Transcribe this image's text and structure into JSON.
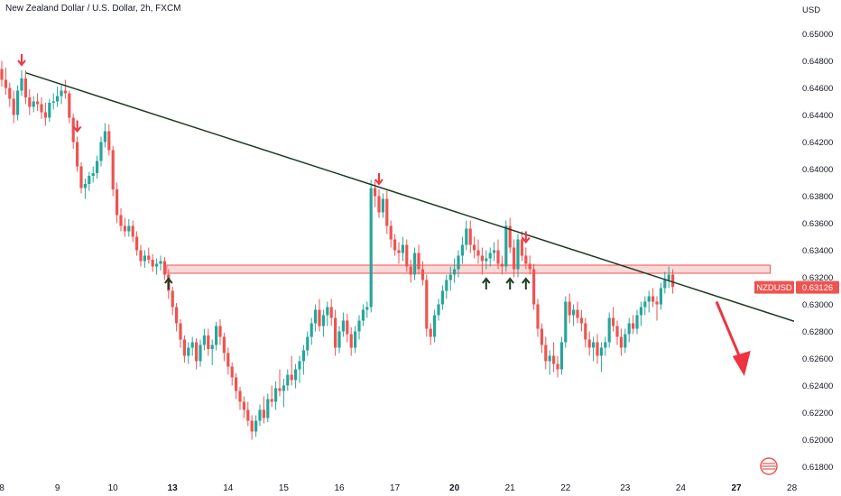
{
  "title": "New Zealand Dollar / U.S. Dollar, 2h, FXCM",
  "colors": {
    "up": "#26a69a",
    "down": "#ef5350",
    "trendline": "#1e3b24",
    "zone_fill": "rgba(239,83,80,0.22)",
    "zone_stroke": "#ef5350",
    "arrow_red": "#ef3340",
    "arrow_green": "#1e3b24",
    "price_tag": "#ef5350"
  },
  "chart_data": {
    "type": "candlestick",
    "symbol": "NZDUSD",
    "last_price": "0.63126",
    "y_unit": "USD",
    "ylim": [
      0.6175,
      0.6525
    ],
    "y_ticks": [
      "0.61800",
      "0.62000",
      "0.62200",
      "0.62400",
      "0.62600",
      "0.62800",
      "0.63000",
      "0.63200",
      "0.63400",
      "0.63600",
      "0.63800",
      "0.64000",
      "0.64200",
      "0.64400",
      "0.64600",
      "0.64800",
      "0.65000"
    ],
    "x_ticks": [
      {
        "label": "8",
        "bold": false
      },
      {
        "label": "9",
        "bold": false
      },
      {
        "label": "10",
        "bold": false
      },
      {
        "label": "13",
        "bold": true
      },
      {
        "label": "14",
        "bold": false
      },
      {
        "label": "15",
        "bold": false
      },
      {
        "label": "16",
        "bold": false
      },
      {
        "label": "17",
        "bold": false
      },
      {
        "label": "20",
        "bold": true
      },
      {
        "label": "21",
        "bold": false
      },
      {
        "label": "22",
        "bold": false
      },
      {
        "label": "23",
        "bold": false
      },
      {
        "label": "24",
        "bold": false
      },
      {
        "label": "27",
        "bold": true
      },
      {
        "label": "28",
        "bold": false
      }
    ],
    "resistance_zone": [
      0.6323,
      0.6329
    ],
    "trendline": {
      "from": {
        "bar": 2,
        "price": 0.6475
      },
      "to": {
        "bar": 179,
        "price": 0.6307
      }
    },
    "down_arrows_at_bars": [
      5,
      19,
      95,
      132
    ],
    "up_arrows_at_bars": [
      42,
      122,
      128,
      132
    ],
    "projection": {
      "from": {
        "bar": 180,
        "price": 0.6302
      },
      "to": {
        "bar": 187,
        "price": 0.6247
      }
    },
    "candles": [
      [
        0.6474,
        0.648,
        0.6461,
        0.6466
      ],
      [
        0.6466,
        0.6475,
        0.6455,
        0.646
      ],
      [
        0.646,
        0.6464,
        0.6446,
        0.6452
      ],
      [
        0.6452,
        0.6458,
        0.6434,
        0.644
      ],
      [
        0.644,
        0.6462,
        0.6436,
        0.6458
      ],
      [
        0.6458,
        0.6473,
        0.6454,
        0.6467
      ],
      [
        0.6467,
        0.6473,
        0.6448,
        0.6453
      ],
      [
        0.6453,
        0.6459,
        0.644,
        0.6446
      ],
      [
        0.6446,
        0.6454,
        0.6442,
        0.645
      ],
      [
        0.645,
        0.6456,
        0.6443,
        0.6448
      ],
      [
        0.6448,
        0.6453,
        0.6437,
        0.6442
      ],
      [
        0.6442,
        0.6449,
        0.6432,
        0.6438
      ],
      [
        0.6438,
        0.6452,
        0.6435,
        0.6449
      ],
      [
        0.6449,
        0.6456,
        0.6444,
        0.645
      ],
      [
        0.645,
        0.6461,
        0.6446,
        0.6454
      ],
      [
        0.6454,
        0.6462,
        0.6448,
        0.6458
      ],
      [
        0.6458,
        0.6466,
        0.6452,
        0.6456
      ],
      [
        0.6456,
        0.6458,
        0.6434,
        0.6438
      ],
      [
        0.6438,
        0.6441,
        0.6415,
        0.642
      ],
      [
        0.642,
        0.6424,
        0.6398,
        0.6402
      ],
      [
        0.6402,
        0.6405,
        0.6382,
        0.6386
      ],
      [
        0.6386,
        0.6393,
        0.6378,
        0.6389
      ],
      [
        0.6389,
        0.6398,
        0.6384,
        0.6395
      ],
      [
        0.6395,
        0.6402,
        0.639,
        0.6397
      ],
      [
        0.6397,
        0.641,
        0.6393,
        0.6406
      ],
      [
        0.6406,
        0.6424,
        0.6402,
        0.642
      ],
      [
        0.642,
        0.6434,
        0.6416,
        0.6428
      ],
      [
        0.6428,
        0.6433,
        0.641,
        0.6414
      ],
      [
        0.6414,
        0.6417,
        0.638,
        0.6385
      ],
      [
        0.6385,
        0.639,
        0.636,
        0.6366
      ],
      [
        0.6366,
        0.6371,
        0.6354,
        0.6358
      ],
      [
        0.6358,
        0.6364,
        0.635,
        0.6354
      ],
      [
        0.6354,
        0.6363,
        0.635,
        0.6358
      ],
      [
        0.6358,
        0.6362,
        0.6346,
        0.635
      ],
      [
        0.635,
        0.6354,
        0.6336,
        0.634
      ],
      [
        0.634,
        0.6344,
        0.6328,
        0.6332
      ],
      [
        0.6332,
        0.634,
        0.6327,
        0.6336
      ],
      [
        0.6336,
        0.6342,
        0.633,
        0.6333
      ],
      [
        0.6333,
        0.6337,
        0.6324,
        0.6328
      ],
      [
        0.6328,
        0.6334,
        0.6322,
        0.633
      ],
      [
        0.633,
        0.6336,
        0.6325,
        0.6332
      ],
      [
        0.6332,
        0.6335,
        0.6318,
        0.6322
      ],
      [
        0.6322,
        0.6326,
        0.6304,
        0.631
      ],
      [
        0.631,
        0.6313,
        0.6292,
        0.6298
      ],
      [
        0.6298,
        0.6301,
        0.628,
        0.6286
      ],
      [
        0.6286,
        0.6289,
        0.6268,
        0.6274
      ],
      [
        0.6274,
        0.6277,
        0.6257,
        0.6262
      ],
      [
        0.6262,
        0.6272,
        0.6256,
        0.6268
      ],
      [
        0.6268,
        0.6276,
        0.6262,
        0.6272
      ],
      [
        0.6272,
        0.6275,
        0.6252,
        0.6258
      ],
      [
        0.6258,
        0.6274,
        0.6254,
        0.627
      ],
      [
        0.627,
        0.6282,
        0.6266,
        0.6277
      ],
      [
        0.6277,
        0.6282,
        0.6262,
        0.6267
      ],
      [
        0.6267,
        0.6274,
        0.6255,
        0.627
      ],
      [
        0.627,
        0.6287,
        0.6266,
        0.6284
      ],
      [
        0.6284,
        0.6289,
        0.627,
        0.6276
      ],
      [
        0.6276,
        0.6279,
        0.6258,
        0.6264
      ],
      [
        0.6264,
        0.6268,
        0.6248,
        0.6254
      ],
      [
        0.6254,
        0.6257,
        0.624,
        0.6246
      ],
      [
        0.6246,
        0.6249,
        0.623,
        0.6236
      ],
      [
        0.6236,
        0.6239,
        0.6222,
        0.6228
      ],
      [
        0.6228,
        0.6232,
        0.6216,
        0.6222
      ],
      [
        0.6222,
        0.6228,
        0.621,
        0.6214
      ],
      [
        0.6214,
        0.6218,
        0.62,
        0.6206
      ],
      [
        0.6206,
        0.6218,
        0.6202,
        0.6214
      ],
      [
        0.6214,
        0.6226,
        0.621,
        0.6222
      ],
      [
        0.6222,
        0.6232,
        0.6212,
        0.6216
      ],
      [
        0.6216,
        0.6234,
        0.6213,
        0.623
      ],
      [
        0.623,
        0.624,
        0.6224,
        0.6228
      ],
      [
        0.6228,
        0.6243,
        0.6222,
        0.6238
      ],
      [
        0.6238,
        0.6252,
        0.6232,
        0.6236
      ],
      [
        0.6236,
        0.6245,
        0.6224,
        0.624
      ],
      [
        0.624,
        0.6252,
        0.6236,
        0.6248
      ],
      [
        0.6248,
        0.6262,
        0.624,
        0.6244
      ],
      [
        0.6244,
        0.6256,
        0.6238,
        0.6252
      ],
      [
        0.6252,
        0.6262,
        0.6242,
        0.6258
      ],
      [
        0.6258,
        0.627,
        0.6248,
        0.6266
      ],
      [
        0.6266,
        0.628,
        0.6262,
        0.6276
      ],
      [
        0.6276,
        0.629,
        0.627,
        0.6286
      ],
      [
        0.6286,
        0.63,
        0.628,
        0.6296
      ],
      [
        0.6296,
        0.6304,
        0.628,
        0.6284
      ],
      [
        0.6284,
        0.6296,
        0.6276,
        0.6292
      ],
      [
        0.6292,
        0.6302,
        0.6284,
        0.6298
      ],
      [
        0.6298,
        0.6304,
        0.6284,
        0.629
      ],
      [
        0.629,
        0.6296,
        0.6262,
        0.6268
      ],
      [
        0.6268,
        0.6284,
        0.6264,
        0.628
      ],
      [
        0.628,
        0.6294,
        0.6276,
        0.6288
      ],
      [
        0.6288,
        0.6293,
        0.6272,
        0.6278
      ],
      [
        0.6278,
        0.6283,
        0.6262,
        0.6268
      ],
      [
        0.6268,
        0.6284,
        0.6264,
        0.628
      ],
      [
        0.628,
        0.6292,
        0.6274,
        0.6288
      ],
      [
        0.6288,
        0.63,
        0.6284,
        0.6296
      ],
      [
        0.6296,
        0.6302,
        0.629,
        0.6298
      ],
      [
        0.6298,
        0.6392,
        0.6294,
        0.6386
      ],
      [
        0.6386,
        0.6392,
        0.6372,
        0.638
      ],
      [
        0.638,
        0.6385,
        0.6364,
        0.6368
      ],
      [
        0.6368,
        0.6382,
        0.6364,
        0.6378
      ],
      [
        0.6378,
        0.6384,
        0.6352,
        0.6358
      ],
      [
        0.6358,
        0.6362,
        0.6342,
        0.6348
      ],
      [
        0.6348,
        0.6352,
        0.6336,
        0.634
      ],
      [
        0.634,
        0.6346,
        0.633,
        0.6338
      ],
      [
        0.6338,
        0.635,
        0.6332,
        0.6344
      ],
      [
        0.6344,
        0.6348,
        0.6324,
        0.6328
      ],
      [
        0.6328,
        0.6333,
        0.6316,
        0.6322
      ],
      [
        0.6322,
        0.6342,
        0.6318,
        0.6338
      ],
      [
        0.6338,
        0.6344,
        0.6322,
        0.6326
      ],
      [
        0.6326,
        0.6332,
        0.6314,
        0.6318
      ],
      [
        0.6318,
        0.6322,
        0.6276,
        0.6282
      ],
      [
        0.6282,
        0.6286,
        0.627,
        0.6276
      ],
      [
        0.6276,
        0.6296,
        0.6272,
        0.6292
      ],
      [
        0.6292,
        0.6304,
        0.6288,
        0.63
      ],
      [
        0.63,
        0.6314,
        0.6296,
        0.631
      ],
      [
        0.631,
        0.6322,
        0.6304,
        0.6318
      ],
      [
        0.6318,
        0.6328,
        0.631,
        0.6322
      ],
      [
        0.6322,
        0.6334,
        0.6316,
        0.6326
      ],
      [
        0.6326,
        0.634,
        0.632,
        0.6336
      ],
      [
        0.6336,
        0.635,
        0.633,
        0.6344
      ],
      [
        0.6344,
        0.6362,
        0.634,
        0.6356
      ],
      [
        0.6356,
        0.6362,
        0.6338,
        0.6344
      ],
      [
        0.6344,
        0.635,
        0.6334,
        0.634
      ],
      [
        0.634,
        0.6348,
        0.633,
        0.6336
      ],
      [
        0.6336,
        0.6342,
        0.6322,
        0.6332
      ],
      [
        0.6332,
        0.634,
        0.6326,
        0.6334
      ],
      [
        0.6334,
        0.6342,
        0.6328,
        0.6338
      ],
      [
        0.6338,
        0.6346,
        0.6332,
        0.634
      ],
      [
        0.634,
        0.6348,
        0.6326,
        0.633
      ],
      [
        0.633,
        0.6336,
        0.6322,
        0.6328
      ],
      [
        0.6328,
        0.6362,
        0.6324,
        0.6358
      ],
      [
        0.6358,
        0.6364,
        0.6338,
        0.6342
      ],
      [
        0.6342,
        0.6348,
        0.632,
        0.6326
      ],
      [
        0.6326,
        0.6352,
        0.632,
        0.6348
      ],
      [
        0.6348,
        0.6354,
        0.6332,
        0.6336
      ],
      [
        0.6336,
        0.6342,
        0.6326,
        0.633
      ],
      [
        0.633,
        0.6336,
        0.6322,
        0.6326
      ],
      [
        0.6326,
        0.633,
        0.6296,
        0.63
      ],
      [
        0.63,
        0.6304,
        0.6276,
        0.6282
      ],
      [
        0.6282,
        0.6286,
        0.6264,
        0.627
      ],
      [
        0.627,
        0.6276,
        0.6252,
        0.6258
      ],
      [
        0.6258,
        0.6266,
        0.6248,
        0.6262
      ],
      [
        0.6262,
        0.6272,
        0.625,
        0.6256
      ],
      [
        0.6256,
        0.6262,
        0.6246,
        0.6252
      ],
      [
        0.6252,
        0.6276,
        0.6248,
        0.6272
      ],
      [
        0.6272,
        0.6306,
        0.6268,
        0.6302
      ],
      [
        0.6302,
        0.6308,
        0.6286,
        0.6292
      ],
      [
        0.6292,
        0.63,
        0.6284,
        0.6296
      ],
      [
        0.6296,
        0.6302,
        0.6286,
        0.629
      ],
      [
        0.629,
        0.6296,
        0.628,
        0.6286
      ],
      [
        0.6286,
        0.629,
        0.6268,
        0.6274
      ],
      [
        0.6274,
        0.628,
        0.6262,
        0.6268
      ],
      [
        0.6268,
        0.6276,
        0.6258,
        0.6272
      ],
      [
        0.6272,
        0.6278,
        0.6256,
        0.6262
      ],
      [
        0.6262,
        0.6272,
        0.625,
        0.6268
      ],
      [
        0.6268,
        0.6276,
        0.6262,
        0.6272
      ],
      [
        0.6272,
        0.6294,
        0.6268,
        0.629
      ],
      [
        0.629,
        0.6298,
        0.628,
        0.6284
      ],
      [
        0.6284,
        0.6288,
        0.627,
        0.6276
      ],
      [
        0.6276,
        0.6282,
        0.6262,
        0.6268
      ],
      [
        0.6268,
        0.6282,
        0.6264,
        0.6278
      ],
      [
        0.6278,
        0.629,
        0.6272,
        0.6286
      ],
      [
        0.6286,
        0.6292,
        0.6278,
        0.6282
      ],
      [
        0.6282,
        0.6296,
        0.6278,
        0.6292
      ],
      [
        0.6292,
        0.6302,
        0.6284,
        0.6298
      ],
      [
        0.6298,
        0.6306,
        0.6292,
        0.6302
      ],
      [
        0.6302,
        0.631,
        0.6294,
        0.6306
      ],
      [
        0.6306,
        0.6312,
        0.6298,
        0.6302
      ],
      [
        0.6302,
        0.6306,
        0.6288,
        0.63
      ],
      [
        0.63,
        0.6316,
        0.6296,
        0.6312
      ],
      [
        0.6312,
        0.6324,
        0.6308,
        0.6318
      ],
      [
        0.6318,
        0.6328,
        0.6312,
        0.6322
      ],
      [
        0.6322,
        0.6326,
        0.6308,
        0.6313
      ]
    ]
  }
}
